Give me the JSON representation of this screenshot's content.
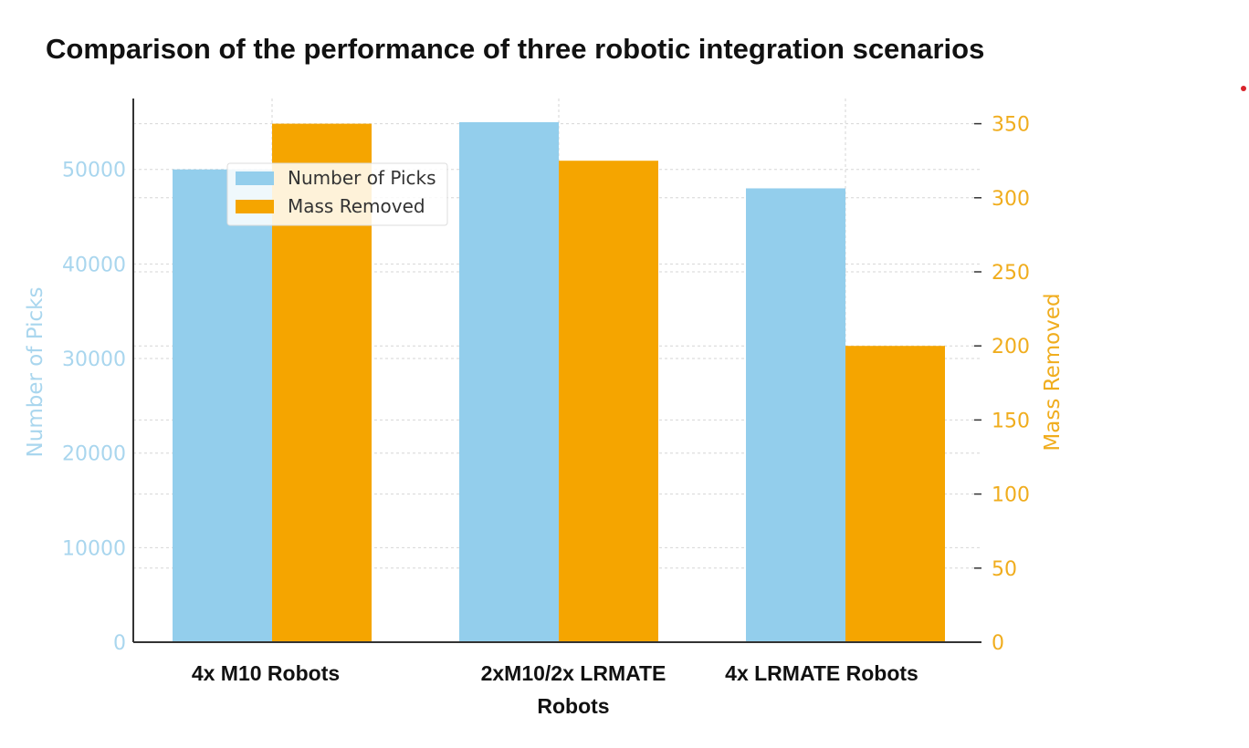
{
  "page": {
    "title": "Comparison of the performance of three robotic integration scenarios"
  },
  "chart_data": {
    "type": "bar",
    "categories": [
      "4x M10 Robots",
      "2xM10/2x LRMATE Robots",
      "4x LRMATE Robots"
    ],
    "category_lines": [
      [
        "4x M10 Robots"
      ],
      [
        "2xM10/2x LRMATE",
        "Robots"
      ],
      [
        "4x LRMATE Robots"
      ]
    ],
    "series": [
      {
        "name": "Number of Picks",
        "axis": "left",
        "color": "#93ceec",
        "values": [
          50000,
          55000,
          48000
        ]
      },
      {
        "name": "Mass Removed",
        "axis": "right",
        "color": "#f5a500",
        "values": [
          350,
          325,
          200
        ]
      }
    ],
    "ylabel": "Number of Picks",
    "ylabel_right": "Mass Removed",
    "ylim": [
      0,
      57500
    ],
    "ylim_right": [
      0,
      367
    ],
    "yticks": [
      "0",
      "10000",
      "20000",
      "30000",
      "40000",
      "50000"
    ],
    "yticks_right": [
      "0",
      "50",
      "100",
      "150",
      "200",
      "250",
      "300",
      "350"
    ],
    "left_axis_color": "#a9d6ee",
    "right_axis_color": "#f0ad1e",
    "grid": true,
    "legend_position": "upper-left"
  },
  "decor": {
    "dot_color": "#d8232a"
  }
}
